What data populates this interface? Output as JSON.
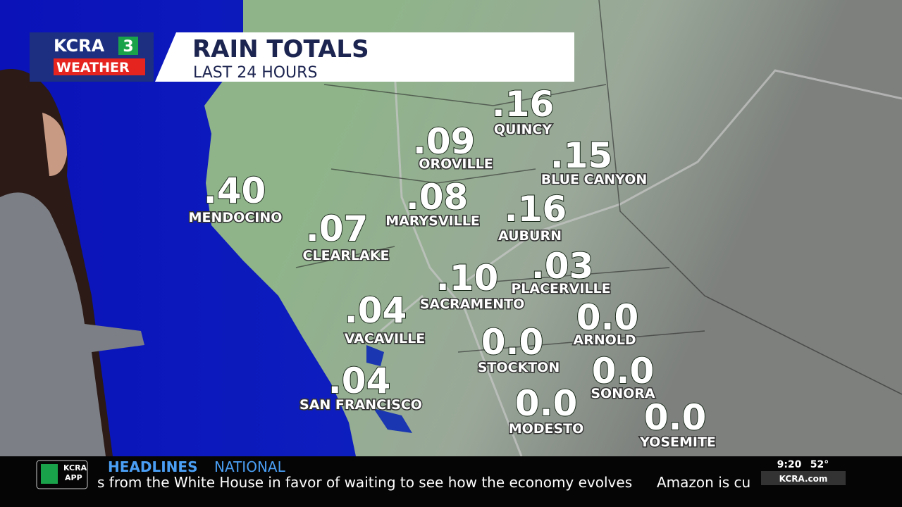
{
  "header": {
    "logo_top": "KCRA",
    "logo_num": "3",
    "logo_bottom": "WEATHER",
    "title": "RAIN TOTALS",
    "subtitle": "LAST 24 HOURS"
  },
  "locations": [
    {
      "name": "QUINCY",
      "value": ".16"
    },
    {
      "name": "OROVILLE",
      "value": ".09"
    },
    {
      "name": "BLUE CANYON",
      "value": ".15"
    },
    {
      "name": "MENDOCINO",
      "value": ".40"
    },
    {
      "name": "MARYSVILLE",
      "value": ".08"
    },
    {
      "name": "AUBURN",
      "value": ".16"
    },
    {
      "name": "CLEARLAKE",
      "value": ".07"
    },
    {
      "name": "PLACERVILLE",
      "value": ".03"
    },
    {
      "name": "SACRAMENTO",
      "value": ".10"
    },
    {
      "name": "VACAVILLE",
      "value": ".04"
    },
    {
      "name": "ARNOLD",
      "value": "0.0"
    },
    {
      "name": "STOCKTON",
      "value": "0.0"
    },
    {
      "name": "SAN FRANCISCO",
      "value": ".04"
    },
    {
      "name": "SONORA",
      "value": "0.0"
    },
    {
      "name": "MODESTO",
      "value": "0.0"
    },
    {
      "name": "YOSEMITE",
      "value": "0.0"
    }
  ],
  "ticker": {
    "app_top": "KCRA",
    "app_bottom": "APP",
    "section": "HEADLINES",
    "subsection": "NATIONAL",
    "story": "s from the White House in favor of waiting to see how the economy evolves",
    "next_story": "Amazon is cu",
    "time": "9:20",
    "temperature": "52°",
    "site": "KCRA.com"
  }
}
